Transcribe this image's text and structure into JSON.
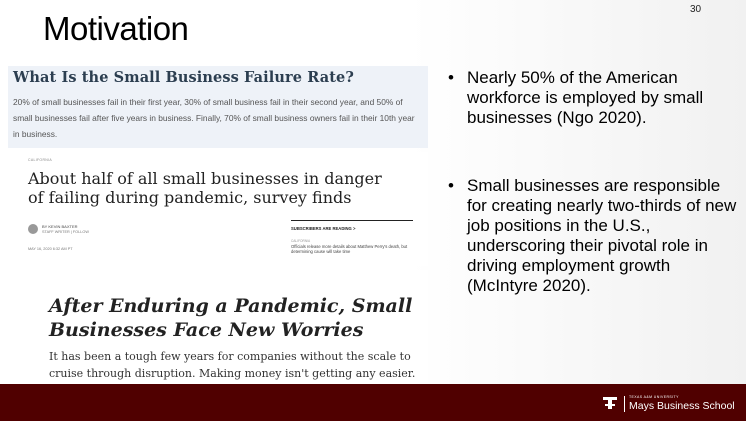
{
  "slide": {
    "title": "Motivation",
    "number": "30"
  },
  "clip1": {
    "heading": "What Is the Small Business Failure Rate?",
    "body": "20% of small businesses fail in their first year, 30% of small business fail in their second year, and 50% of small businesses fail after five years in business. Finally, 70% of small business owners fail in their 10th year in business."
  },
  "clip2": {
    "kicker": "CALIFORNIA",
    "headline": "About half of all small businesses in danger of failing during pandemic, survey finds",
    "byline": "BY KEVIN BAXTER",
    "role": "STAFF WRITER | FOLLOW",
    "date": "MAY 16, 2020 6:32 AM PT",
    "sidebar_heading": "SUBSCRIBERS ARE READING >",
    "sidebar_kicker": "CALIFORNIA",
    "sidebar_text": "Officials release more details about Matthew Perry's death, but determining cause will take time"
  },
  "clip3": {
    "headline": "After Enduring a Pandemic, Small Businesses Face New Worries",
    "body": "It has been a tough few years for companies without the scale to cruise through disruption. Making money isn't getting any easier."
  },
  "bullets": [
    "Nearly 50% of the American workforce is employed by small businesses (Ngo 2020).",
    "Small businesses are responsible for creating nearly two-thirds of new job positions in the U.S., underscoring their pivotal role in driving employment growth (McIntyre 2020)."
  ],
  "bullet_glyph": "•",
  "footer": {
    "university": "TEXAS A&M UNIVERSITY",
    "school": "Mays Business School",
    "logo_icon": "atm-logo-icon",
    "color": "#500000"
  }
}
